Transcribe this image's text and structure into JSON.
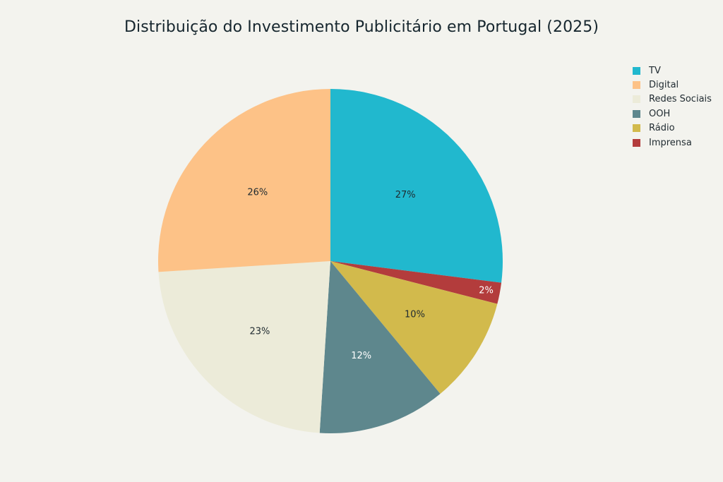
{
  "chart_data": {
    "type": "pie",
    "title": "Distribuição do Investimento Publicitário em Portugal (2025)",
    "legend_position": "top-right",
    "slices": [
      {
        "label": "TV",
        "value": 27,
        "display": "27%",
        "color": "#21b8ce",
        "text_color": "#1f2a30"
      },
      {
        "label": "Imprensa",
        "value": 2,
        "display": "2%",
        "color": "#b33c3c",
        "text_color": "#ffffff"
      },
      {
        "label": "Rádio",
        "value": 10,
        "display": "10%",
        "color": "#d2ba4c",
        "text_color": "#1f2a30"
      },
      {
        "label": "OOH",
        "value": 12,
        "display": "12%",
        "color": "#5e878d",
        "text_color": "#ffffff"
      },
      {
        "label": "Redes Sociais",
        "value": 23,
        "display": "23%",
        "color": "#ecebd9",
        "text_color": "#1f2a30"
      },
      {
        "label": "Digital",
        "value": 26,
        "display": "26%",
        "color": "#fdc287",
        "text_color": "#1f2a30"
      }
    ],
    "legend": [
      {
        "label": "TV",
        "color": "#21b8ce"
      },
      {
        "label": "Digital",
        "color": "#fdc287"
      },
      {
        "label": "Redes Sociais",
        "color": "#ecebd9"
      },
      {
        "label": "OOH",
        "color": "#5e878d"
      },
      {
        "label": "Rádio",
        "color": "#d2ba4c"
      },
      {
        "label": "Imprensa",
        "color": "#b33c3c"
      }
    ]
  }
}
